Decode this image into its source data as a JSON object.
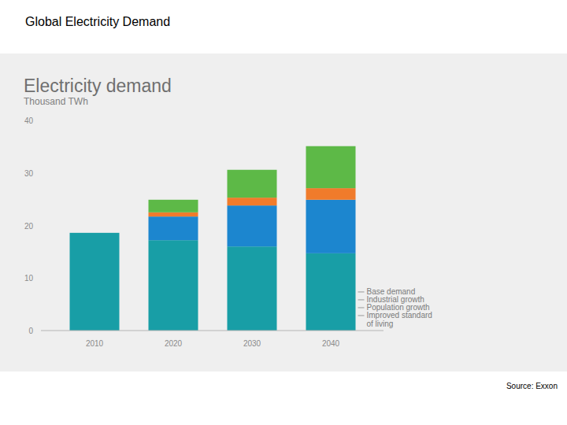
{
  "slide_title": "Global Electricity Demand",
  "source": "Source: Exxon",
  "chart_data": {
    "type": "bar",
    "title": "Electricity demand",
    "subtitle": "Thousand TWh",
    "stacked": true,
    "categories": [
      "2010",
      "2020",
      "2030",
      "2040"
    ],
    "series": [
      {
        "name": "Base demand",
        "color": "#189ea6",
        "values": [
          18.6,
          17.2,
          16.0,
          14.7
        ]
      },
      {
        "name": "Industrial growth",
        "color": "#1c86cf",
        "values": [
          0,
          4.5,
          7.8,
          10.2
        ]
      },
      {
        "name": "Population growth",
        "color": "#f07b2b",
        "values": [
          0,
          0.8,
          1.5,
          2.2
        ]
      },
      {
        "name": "Improved standard of living",
        "color": "#5db947",
        "values": [
          0,
          2.4,
          5.3,
          8.0
        ]
      }
    ],
    "ylim": [
      0,
      40
    ],
    "yticks": [
      0,
      10,
      20,
      30,
      40
    ],
    "grid": false,
    "legend": "right"
  }
}
